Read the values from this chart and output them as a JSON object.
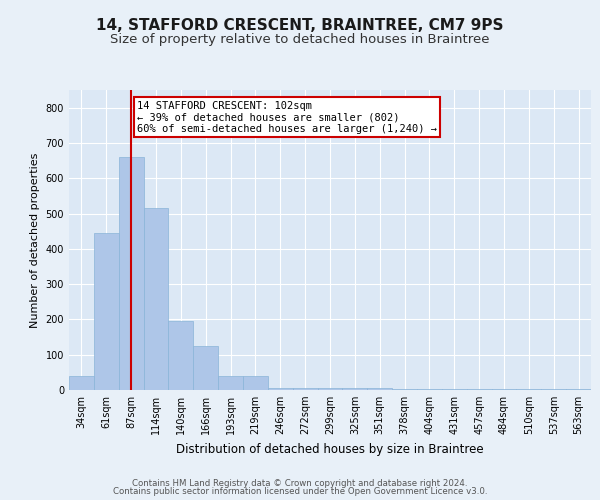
{
  "title": "14, STAFFORD CRESCENT, BRAINTREE, CM7 9PS",
  "subtitle": "Size of property relative to detached houses in Braintree",
  "xlabel": "Distribution of detached houses by size in Braintree",
  "ylabel": "Number of detached properties",
  "bins": [
    "34sqm",
    "61sqm",
    "87sqm",
    "114sqm",
    "140sqm",
    "166sqm",
    "193sqm",
    "219sqm",
    "246sqm",
    "272sqm",
    "299sqm",
    "325sqm",
    "351sqm",
    "378sqm",
    "404sqm",
    "431sqm",
    "457sqm",
    "484sqm",
    "510sqm",
    "537sqm",
    "563sqm"
  ],
  "values": [
    40,
    445,
    660,
    515,
    195,
    125,
    40,
    40,
    5,
    5,
    5,
    5,
    5,
    2,
    2,
    2,
    2,
    2,
    2,
    2,
    2
  ],
  "bar_color": "#aec6e8",
  "bar_edge_color": "#8ab4d8",
  "red_line_bin": 2,
  "red_line_label": "14 STAFFORD CRESCENT: 102sqm",
  "annotation_line1": "← 39% of detached houses are smaller (802)",
  "annotation_line2": "60% of semi-detached houses are larger (1,240) →",
  "annotation_box_color": "#ffffff",
  "annotation_box_edge_color": "#cc0000",
  "ylim": [
    0,
    850
  ],
  "yticks": [
    0,
    100,
    200,
    300,
    400,
    500,
    600,
    700,
    800
  ],
  "background_color": "#e8f0f8",
  "plot_background_color": "#dce8f5",
  "grid_color": "#ffffff",
  "footer1": "Contains HM Land Registry data © Crown copyright and database right 2024.",
  "footer2": "Contains public sector information licensed under the Open Government Licence v3.0.",
  "title_fontsize": 11,
  "subtitle_fontsize": 9.5
}
